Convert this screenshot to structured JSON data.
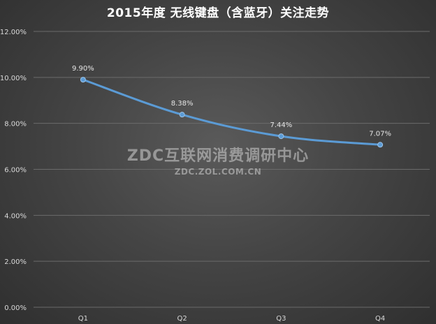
{
  "title": "2015年度 无线键盘（含蓝牙）关注走势",
  "watermark": {
    "main": "ZDC互联网消费调研中心",
    "sub": "ZDC.ZOL.COM.CN"
  },
  "colors": {
    "line": "#5b9bd5",
    "grid": "#6b6b6b",
    "text": "#d9d9d9"
  },
  "chart_data": {
    "type": "line",
    "categories": [
      "Q1",
      "Q2",
      "Q3",
      "Q4"
    ],
    "series": [
      {
        "values": [
          9.9,
          8.38,
          7.44,
          7.07
        ]
      }
    ],
    "data_labels": [
      "9.90%",
      "8.38%",
      "7.44%",
      "7.07%"
    ],
    "y_ticks": [
      "0.00%",
      "2.00%",
      "4.00%",
      "6.00%",
      "8.00%",
      "10.00%",
      "12.00%"
    ],
    "ylim": [
      0,
      12
    ],
    "y_tick_step": 2,
    "grid": true,
    "smooth": true,
    "title": "2015年度 无线键盘（含蓝牙）关注走势"
  }
}
